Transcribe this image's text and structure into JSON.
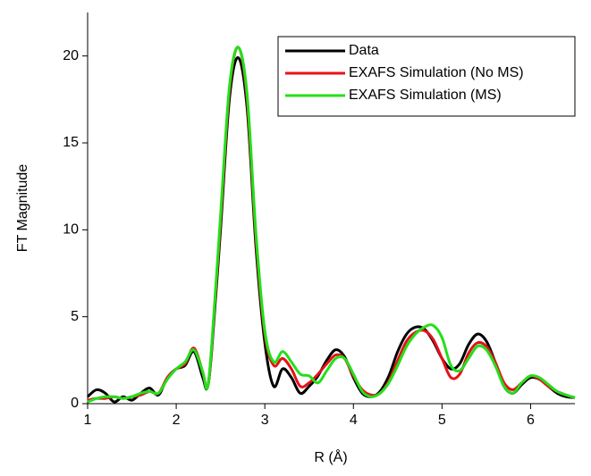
{
  "chart_data": {
    "type": "line",
    "x_label": "R (Å)",
    "y_label": "FT Magnitude",
    "x": [
      1.0,
      1.1,
      1.2,
      1.3,
      1.4,
      1.5,
      1.6,
      1.7,
      1.8,
      1.9,
      2.0,
      2.1,
      2.2,
      2.3,
      2.35,
      2.4,
      2.5,
      2.6,
      2.7,
      2.8,
      2.9,
      3.0,
      3.1,
      3.2,
      3.3,
      3.4,
      3.5,
      3.6,
      3.7,
      3.8,
      3.9,
      4.0,
      4.1,
      4.2,
      4.3,
      4.4,
      4.5,
      4.6,
      4.7,
      4.8,
      4.9,
      5.0,
      5.1,
      5.2,
      5.3,
      5.4,
      5.5,
      5.6,
      5.7,
      5.8,
      5.9,
      6.0,
      6.1,
      6.2,
      6.3,
      6.4,
      6.5
    ],
    "series": [
      {
        "name": "Data",
        "color": "#000000",
        "values": [
          0.4,
          0.8,
          0.6,
          0.1,
          0.4,
          0.2,
          0.6,
          0.9,
          0.5,
          1.5,
          2.0,
          2.2,
          3.0,
          1.5,
          0.9,
          3.0,
          10,
          17.5,
          19.9,
          17,
          9,
          3.5,
          1.0,
          2.0,
          1.5,
          0.6,
          1.0,
          1.6,
          2.5,
          3.1,
          2.7,
          1.5,
          0.6,
          0.4,
          0.7,
          1.6,
          3.0,
          4.0,
          4.4,
          4.3,
          3.6,
          2.6,
          2.0,
          2.3,
          3.4,
          4.0,
          3.6,
          2.4,
          1.0,
          0.6,
          1.1,
          1.5,
          1.4,
          1.0,
          0.6,
          0.4,
          0.35
        ]
      },
      {
        "name": "EXAFS Simulation (No MS)",
        "color": "#e8101a",
        "values": [
          0.2,
          0.3,
          0.3,
          0.4,
          0.3,
          0.4,
          0.5,
          0.7,
          0.6,
          1.5,
          2.0,
          2.3,
          3.2,
          1.8,
          0.9,
          3.2,
          10.5,
          18,
          20.5,
          17.5,
          9.5,
          4.0,
          2.2,
          2.6,
          2.0,
          1.0,
          1.2,
          1.7,
          2.3,
          2.8,
          2.6,
          1.6,
          0.8,
          0.5,
          0.6,
          1.3,
          2.5,
          3.6,
          4.1,
          4.2,
          3.7,
          2.6,
          1.5,
          1.7,
          2.9,
          3.5,
          3.3,
          2.4,
          1.2,
          0.8,
          1.2,
          1.6,
          1.4,
          1.0,
          0.7,
          0.5,
          0.35
        ]
      },
      {
        "name": "EXAFS Simulation (MS)",
        "color": "#22e01a",
        "values": [
          0.1,
          0.3,
          0.4,
          0.4,
          0.3,
          0.4,
          0.6,
          0.7,
          0.6,
          1.4,
          2.0,
          2.4,
          3.1,
          1.8,
          0.9,
          3.3,
          10.8,
          18.2,
          20.5,
          17.8,
          9.8,
          4.2,
          2.4,
          3.0,
          2.4,
          1.7,
          1.6,
          1.2,
          1.9,
          2.6,
          2.6,
          1.7,
          0.7,
          0.4,
          0.6,
          1.2,
          2.2,
          3.3,
          4.0,
          4.4,
          4.5,
          3.8,
          2.2,
          1.9,
          2.6,
          3.3,
          3.1,
          2.2,
          1.0,
          0.6,
          1.2,
          1.6,
          1.5,
          1.1,
          0.7,
          0.5,
          0.35
        ]
      }
    ],
    "xlim": [
      1,
      6.5
    ],
    "ylim": [
      0,
      22.5
    ],
    "xticks": [
      1,
      2,
      3,
      4,
      5,
      6
    ],
    "yticks": [
      0,
      5,
      10,
      15,
      20
    ],
    "legend": "upper right"
  }
}
